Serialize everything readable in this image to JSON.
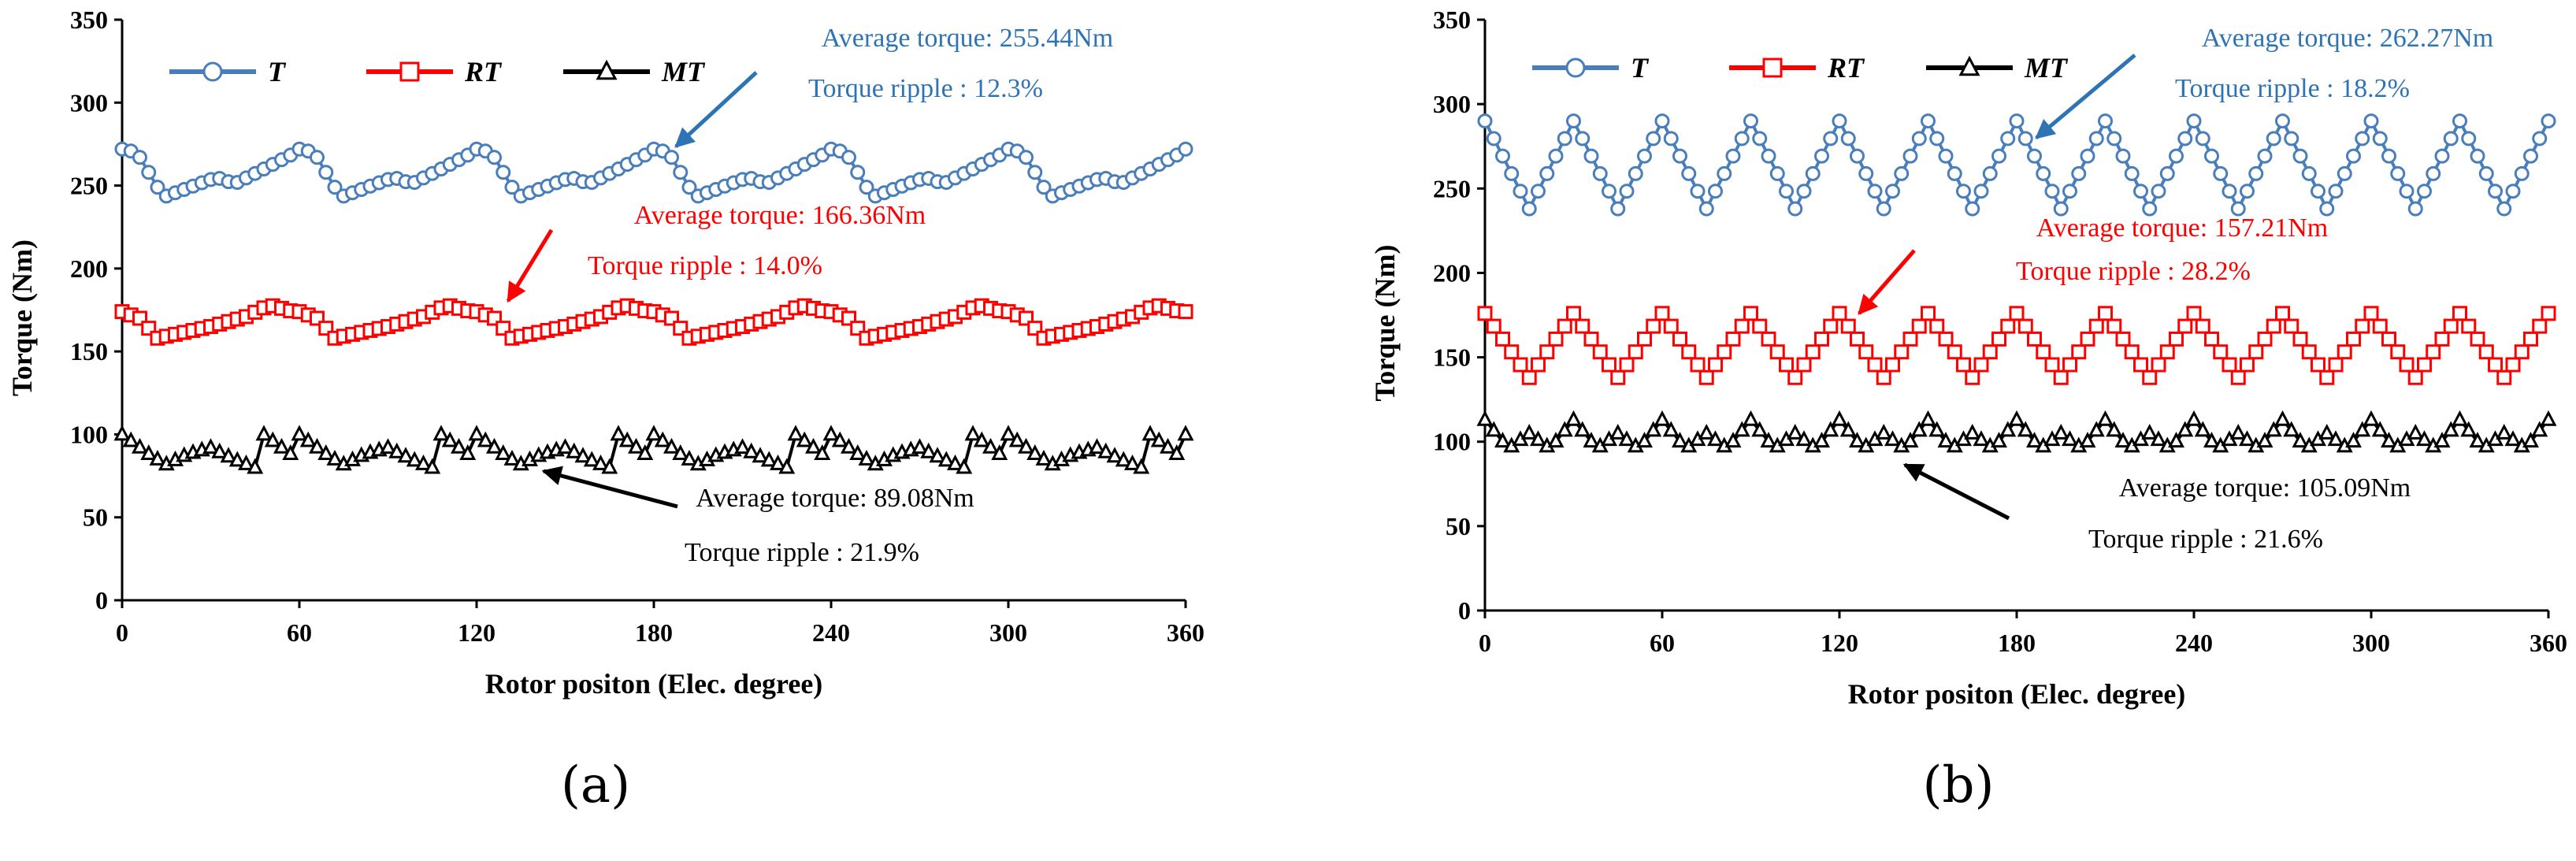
{
  "chart_data": [
    {
      "type": "line",
      "panel": "(a)",
      "xlabel": "Rotor positon (Elec. degree)",
      "ylabel": "Torque (Nm)",
      "xlim": [
        0,
        360
      ],
      "ylim": [
        0,
        350
      ],
      "xticks": [
        0,
        60,
        120,
        180,
        240,
        300,
        360
      ],
      "yticks": [
        0,
        50,
        100,
        150,
        200,
        250,
        300,
        350
      ],
      "grid": false,
      "legend_position": "top-left",
      "series": [
        {
          "name": "T",
          "key": "T",
          "color": "#4a7ebb",
          "marker": "circle",
          "profile": {
            "x": [
              0,
              5,
              14,
              32,
              38,
              48,
              62,
              74,
              92,
              98,
              108,
              122
            ],
            "y": [
              272,
              270,
              243,
              255,
              251,
              260,
              273,
              243,
              255,
              251,
              260,
              273
            ]
          },
          "period": 60
        },
        {
          "name": "RT",
          "key": "RT",
          "color": "#ff0000",
          "marker": "square",
          "profile": {
            "x": [
              0,
              6,
              12,
              30,
              42,
              50,
              58,
              66,
              72
            ],
            "y": [
              174,
              170,
              158,
              165,
              171,
              178,
              174,
              167,
              158
            ]
          },
          "period": 60
        },
        {
          "name": "MT",
          "key": "MT",
          "color": "#000000",
          "marker": "triangle",
          "profile": {
            "x": [
              0,
              10,
              15,
              22,
              30,
              38,
              45,
              48
            ],
            "y": [
              100,
              87,
              82,
              88,
              92,
              85,
              80,
              82
            ]
          },
          "period": 60
        }
      ],
      "annotations": [
        {
          "key": "T_avg",
          "text": "Average torque: 255.44Nm",
          "color": "#2e74b5"
        },
        {
          "key": "T_rip",
          "text": "Torque ripple : 12.3%",
          "color": "#2e74b5"
        },
        {
          "key": "RT_avg",
          "text": "Average torque: 166.36Nm",
          "color": "#ff0000"
        },
        {
          "key": "RT_rip",
          "text": "Torque ripple : 14.0%",
          "color": "#ff0000"
        },
        {
          "key": "MT_avg",
          "text": "Average torque: 89.08Nm",
          "color": "#000000"
        },
        {
          "key": "MT_rip",
          "text": "Torque ripple : 21.9%",
          "color": "#000000"
        }
      ]
    },
    {
      "type": "line",
      "panel": "(b)",
      "xlabel": "Rotor positon (Elec. degree)",
      "ylabel": "Torque (Nm)",
      "xlim": [
        0,
        360
      ],
      "ylim": [
        0,
        350
      ],
      "xticks": [
        0,
        60,
        120,
        180,
        240,
        300,
        360
      ],
      "yticks": [
        0,
        50,
        100,
        150,
        200,
        250,
        300,
        350
      ],
      "grid": false,
      "legend_position": "top-left",
      "series": [
        {
          "name": "T",
          "key": "T",
          "color": "#4a7ebb",
          "marker": "circle",
          "profile": {
            "x": [
              0,
              15,
              30
            ],
            "y": [
              290,
              238,
              290
            ]
          },
          "period": 30
        },
        {
          "name": "RT",
          "key": "RT",
          "color": "#ff0000",
          "marker": "square",
          "profile": {
            "x": [
              0,
              15,
              30
            ],
            "y": [
              176,
              138,
              176
            ]
          },
          "period": 30
        },
        {
          "name": "MT",
          "key": "MT",
          "color": "#000000",
          "marker": "triangle",
          "profile": {
            "x": [
              0,
              8,
              15,
              22,
              30
            ],
            "y": [
              113,
              96,
              105,
              96,
              113
            ]
          },
          "period": 30
        }
      ],
      "annotations": [
        {
          "key": "T_avg",
          "text": "Average torque: 262.27Nm",
          "color": "#2e74b5"
        },
        {
          "key": "T_rip",
          "text": "Torque ripple : 18.2%",
          "color": "#2e74b5"
        },
        {
          "key": "RT_avg",
          "text": "Average torque: 157.21Nm",
          "color": "#ff0000"
        },
        {
          "key": "RT_rip",
          "text": "Torque ripple : 28.2%",
          "color": "#ff0000"
        },
        {
          "key": "MT_avg",
          "text": "Average torque: 105.09Nm",
          "color": "#000000"
        },
        {
          "key": "MT_rip",
          "text": "Torque ripple : 21.6%",
          "color": "#000000"
        }
      ]
    }
  ]
}
